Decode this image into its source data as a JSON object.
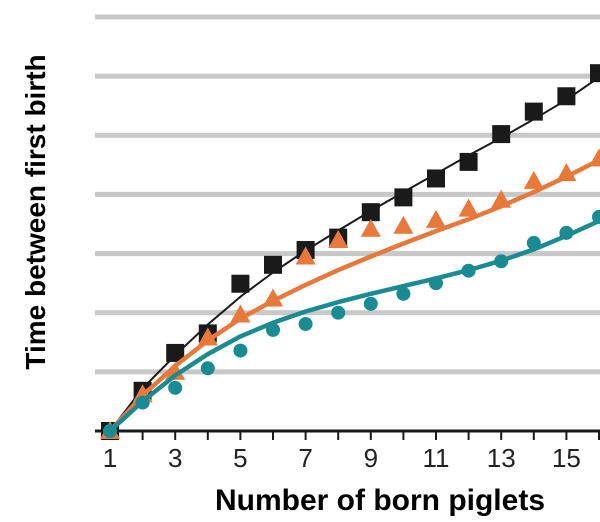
{
  "chart_data": {
    "type": "scatter",
    "xlabel": "Number of born piglets",
    "ylabel": "Time between first birth",
    "x_ticks": [
      1,
      3,
      5,
      7,
      9,
      11,
      13,
      15
    ],
    "xlim": [
      0.8,
      16
    ],
    "ylim": [
      0,
      7
    ],
    "grid": true,
    "series": [
      {
        "marker": "square",
        "color": "#1a1a1a",
        "x": [
          1,
          2,
          3,
          4,
          5,
          6,
          7,
          8,
          9,
          10,
          11,
          12,
          13,
          14,
          15,
          16
        ],
        "points": [
          0,
          0.68,
          1.32,
          1.65,
          2.49,
          2.81,
          3.06,
          3.27,
          3.7,
          3.95,
          4.27,
          4.55,
          5.02,
          5.4,
          5.66,
          6.05
        ],
        "fit": [
          0,
          0.72,
          1.28,
          1.8,
          2.27,
          2.68,
          3.05,
          3.39,
          3.72,
          4.04,
          4.35,
          4.66,
          4.96,
          5.27,
          5.6,
          5.98
        ]
      },
      {
        "marker": "triangle",
        "color": "#e8793a",
        "x": [
          1,
          2,
          3,
          4,
          5,
          6,
          7,
          8,
          9,
          10,
          11,
          12,
          13,
          14,
          15,
          16
        ],
        "points": [
          0,
          0.62,
          1.0,
          1.58,
          1.97,
          2.24,
          2.95,
          3.23,
          3.42,
          3.47,
          3.57,
          3.76,
          3.91,
          4.23,
          4.36,
          4.61
        ],
        "fit": [
          0,
          0.6,
          1.1,
          1.53,
          1.9,
          2.2,
          2.47,
          2.72,
          2.95,
          3.17,
          3.38,
          3.58,
          3.8,
          4.04,
          4.3,
          4.58
        ]
      },
      {
        "marker": "circle",
        "color": "#1a8a93",
        "x": [
          1,
          2,
          3,
          4,
          5,
          6,
          7,
          8,
          9,
          10,
          11,
          12,
          13,
          14,
          15,
          16
        ],
        "points": [
          0,
          0.48,
          0.73,
          1.06,
          1.36,
          1.71,
          1.81,
          2.0,
          2.15,
          2.32,
          2.5,
          2.71,
          2.87,
          3.18,
          3.35,
          3.62
        ],
        "fit": [
          0,
          0.5,
          0.94,
          1.3,
          1.6,
          1.83,
          2.02,
          2.18,
          2.32,
          2.45,
          2.58,
          2.72,
          2.88,
          3.07,
          3.3,
          3.55
        ]
      }
    ]
  }
}
